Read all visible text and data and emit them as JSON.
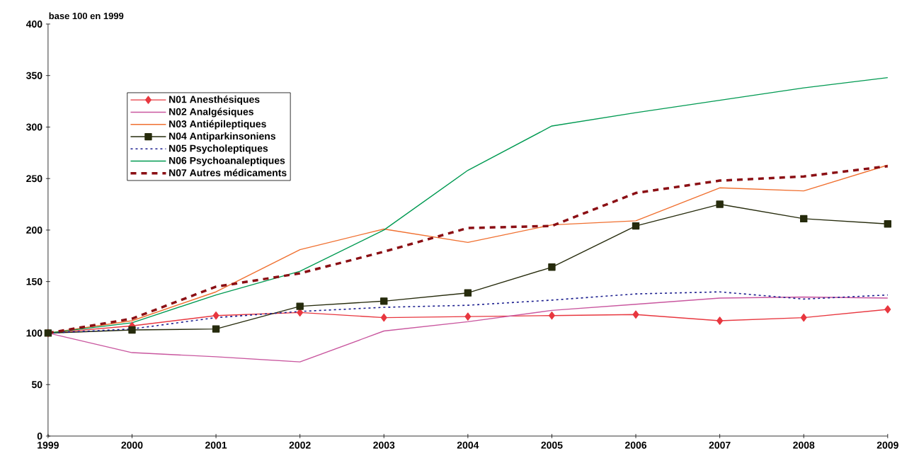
{
  "chart_data": {
    "type": "line",
    "ylabel": "base 100 en 1999",
    "x": [
      1999,
      2000,
      2001,
      2002,
      2003,
      2004,
      2005,
      2006,
      2007,
      2008,
      2009
    ],
    "xlim": [
      1999,
      2009
    ],
    "xticks": [
      1999,
      2000,
      2001,
      2002,
      2003,
      2004,
      2005,
      2006,
      2007,
      2008,
      2009
    ],
    "ylim": [
      0,
      400
    ],
    "yticks": [
      0,
      50,
      100,
      150,
      200,
      250,
      300,
      350,
      400
    ],
    "grid": false,
    "legend": "top left",
    "series": [
      {
        "name": "N01 Anesthésiques",
        "color": "#e8373f",
        "marker": "diamond",
        "line_style": "solid",
        "values": [
          100,
          107,
          117,
          120,
          115,
          116,
          117,
          118,
          112,
          115,
          123
        ]
      },
      {
        "name": "N02 Analgésiques",
        "color": "#c9579f",
        "marker": "none",
        "line_style": "solid",
        "values": [
          100,
          81,
          77,
          72,
          102,
          111,
          122,
          128,
          134,
          135,
          134
        ]
      },
      {
        "name": "N03 Antiépileptiques",
        "color": "#f07030",
        "marker": "none",
        "line_style": "solid",
        "values": [
          100,
          112,
          140,
          181,
          201,
          188,
          205,
          209,
          241,
          238,
          263
        ]
      },
      {
        "name": "N04 Antiparkinsoniens",
        "color": "#262b0c",
        "marker": "square",
        "line_style": "solid",
        "values": [
          100,
          103,
          104,
          126,
          131,
          139,
          164,
          204,
          225,
          211,
          206
        ]
      },
      {
        "name": "N05 Psycholeptiques",
        "color": "#1c1f8f",
        "marker": "none",
        "line_style": "dotted",
        "values": [
          100,
          104,
          115,
          121,
          125,
          127,
          132,
          138,
          140,
          133,
          137
        ]
      },
      {
        "name": "N06 Psychoanaleptiques",
        "color": "#009a52",
        "marker": "none",
        "line_style": "solid",
        "values": [
          100,
          110,
          137,
          160,
          200,
          258,
          301,
          314,
          326,
          338,
          348
        ]
      },
      {
        "name": "N07 Autres médicaments",
        "color": "#8b0f14",
        "marker": "none",
        "line_style": "dashed",
        "values": [
          100,
          114,
          145,
          158,
          179,
          202,
          204,
          236,
          248,
          252,
          262
        ]
      }
    ]
  }
}
